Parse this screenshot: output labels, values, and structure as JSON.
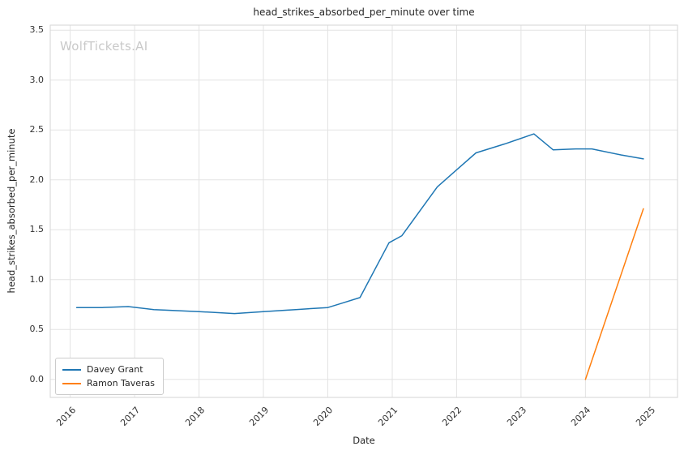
{
  "watermark": "WolfTickets.AI",
  "chart_data": {
    "type": "line",
    "title": "head_strikes_absorbed_per_minute over time",
    "xlabel": "Date",
    "ylabel": "head_strikes_absorbed_per_minute",
    "grid": true,
    "legend_position": "lower left",
    "xlim": [
      2015.69,
      2025.43
    ],
    "ylim": [
      -0.18,
      3.55
    ],
    "xticks": [
      2016,
      2017,
      2018,
      2019,
      2020,
      2021,
      2022,
      2023,
      2024,
      2025
    ],
    "yticks": [
      0.0,
      0.5,
      1.0,
      1.5,
      2.0,
      2.5,
      3.0,
      3.5
    ],
    "series": [
      {
        "name": "Davey Grant",
        "color": "#1f77b4",
        "x": [
          2016.1,
          2016.5,
          2016.9,
          2017.3,
          2018.0,
          2018.55,
          2019.0,
          2019.5,
          2020.0,
          2020.2,
          2020.5,
          2020.95,
          2021.15,
          2021.7,
          2022.0,
          2022.3,
          2022.75,
          2023.2,
          2023.5,
          2023.85,
          2024.1,
          2024.55,
          2024.9
        ],
        "y": [
          0.72,
          0.72,
          0.73,
          0.7,
          0.68,
          0.66,
          0.68,
          0.7,
          0.72,
          0.76,
          0.82,
          1.37,
          1.44,
          1.93,
          2.1,
          2.27,
          2.36,
          2.46,
          2.3,
          2.31,
          2.31,
          2.25,
          2.21
        ]
      },
      {
        "name": "Ramon Taveras",
        "color": "#ff7f0e",
        "x": [
          2024.0,
          2024.9
        ],
        "y": [
          0.0,
          1.71
        ]
      }
    ]
  }
}
